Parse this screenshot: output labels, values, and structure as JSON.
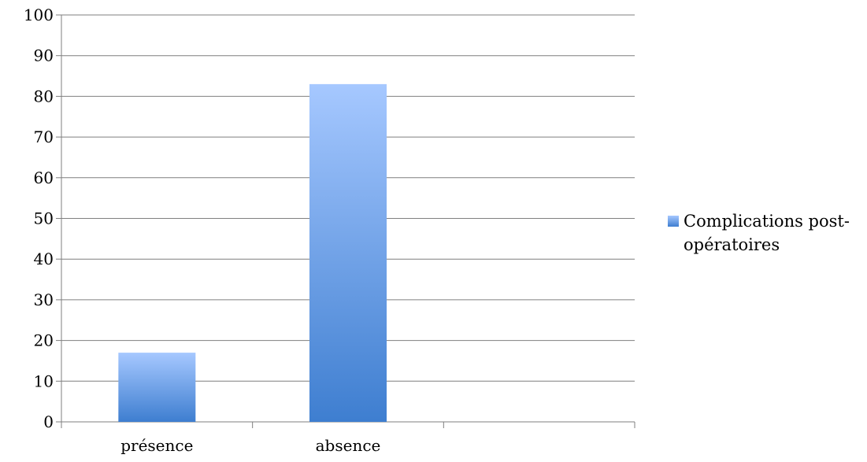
{
  "chart_data": {
    "type": "bar",
    "categories": [
      "présence",
      "absence"
    ],
    "series": [
      {
        "name": "Complications post-opératoires",
        "values": [
          17,
          83
        ]
      }
    ],
    "ylim": [
      0,
      100
    ],
    "y_ticks": [
      0,
      10,
      20,
      30,
      40,
      50,
      60,
      70,
      80,
      90,
      100
    ],
    "x_slots": 3,
    "grid": true,
    "legend": {
      "position": "right",
      "lines": [
        "Complications post-",
        "opératoires"
      ]
    },
    "colors": {
      "bar_top": "#a6c8ff",
      "bar_bottom": "#3e7ed0",
      "grid": "#7f7f7f"
    }
  }
}
